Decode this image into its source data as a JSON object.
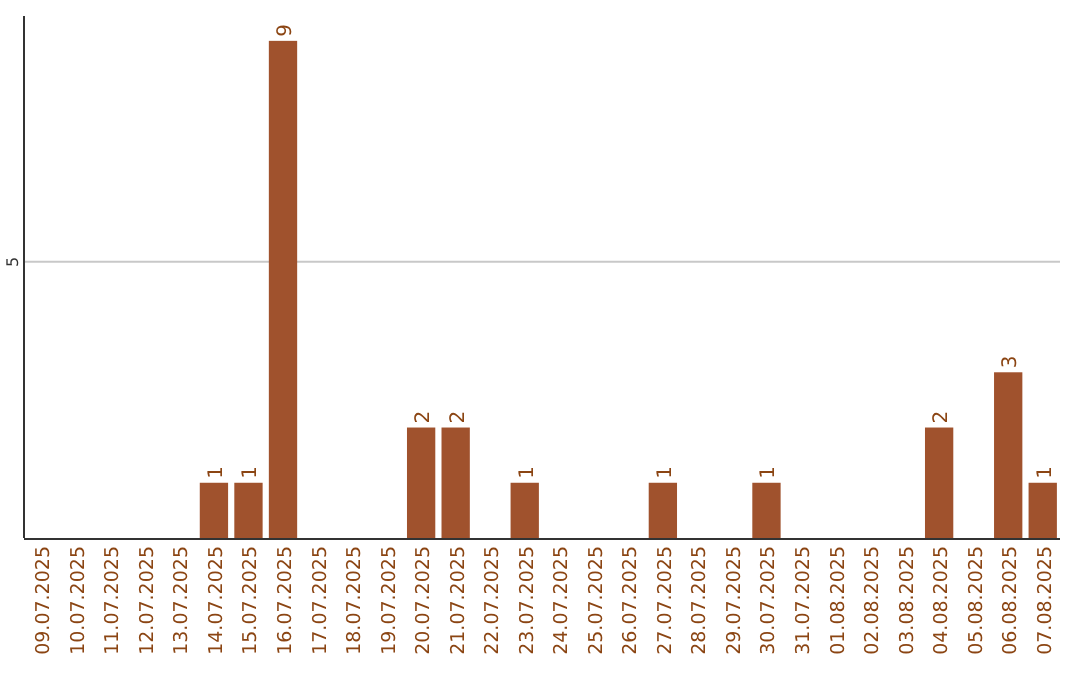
{
  "chart_data": {
    "type": "bar",
    "categories": [
      "09.07.2025",
      "10.07.2025",
      "11.07.2025",
      "12.07.2025",
      "13.07.2025",
      "14.07.2025",
      "15.07.2025",
      "16.07.2025",
      "17.07.2025",
      "18.07.2025",
      "19.07.2025",
      "20.07.2025",
      "21.07.2025",
      "22.07.2025",
      "23.07.2025",
      "24.07.2025",
      "25.07.2025",
      "26.07.2025",
      "27.07.2025",
      "28.07.2025",
      "29.07.2025",
      "30.07.2025",
      "31.07.2025",
      "01.08.2025",
      "02.08.2025",
      "03.08.2025",
      "04.08.2025",
      "05.08.2025",
      "06.08.2025",
      "07.08.2025"
    ],
    "values": [
      0,
      0,
      0,
      0,
      0,
      1,
      1,
      9,
      0,
      0,
      0,
      2,
      2,
      0,
      1,
      0,
      0,
      0,
      1,
      0,
      0,
      1,
      0,
      0,
      0,
      0,
      2,
      0,
      3,
      1
    ],
    "color": "#a0522d",
    "value_labels": [
      null,
      null,
      null,
      null,
      null,
      "1",
      "1",
      "9",
      null,
      null,
      null,
      "2",
      "2",
      null,
      "1",
      null,
      null,
      null,
      "1",
      null,
      null,
      "1",
      null,
      null,
      null,
      null,
      "2",
      null,
      "3",
      "1"
    ],
    "ylim": [
      0,
      9.45
    ],
    "yticks": [
      5
    ],
    "grid": "y"
  }
}
